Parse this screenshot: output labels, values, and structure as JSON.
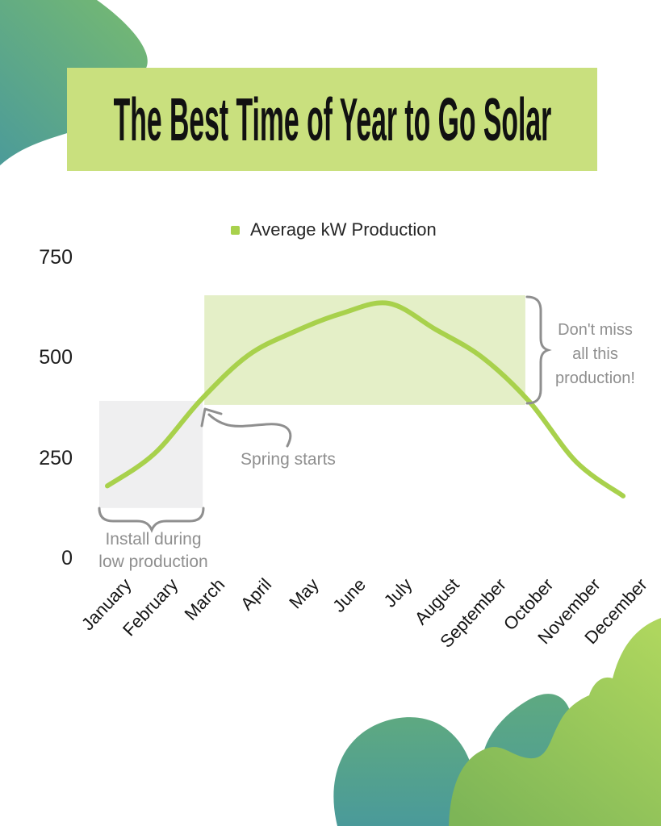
{
  "page": {
    "background": "#ffffff"
  },
  "title_banner": {
    "text": "The Best Time of Year to Go Solar",
    "bg_color": "#c9e07e",
    "text_color": "#111111"
  },
  "legend": {
    "label": "Average kW Production",
    "marker_color": "#a8d14c"
  },
  "chart_data": {
    "type": "line",
    "title": "Average kW Production",
    "categories": [
      "January",
      "February",
      "March",
      "April",
      "May",
      "June",
      "July",
      "August",
      "September",
      "October",
      "November",
      "December"
    ],
    "values": [
      180,
      260,
      395,
      505,
      565,
      610,
      635,
      570,
      500,
      390,
      240,
      155
    ],
    "unit": "kW",
    "xlabel": "",
    "ylabel": "",
    "yticks": [
      750,
      500,
      250,
      0
    ],
    "ylim": [
      0,
      750
    ],
    "grid": false,
    "legend_position": "top-center",
    "line_color": "#a8d14c",
    "highlight_regions": [
      {
        "name": "low-production",
        "from": "January",
        "to": "March",
        "kw_low": 125,
        "kw_high": 392,
        "color": "#efeff0",
        "label": "Install during low production"
      },
      {
        "name": "high-production",
        "from": "March",
        "to": "October",
        "kw_low": 382,
        "kw_high": 655,
        "color": "#e4efc7",
        "label": "Don't miss all this production!"
      }
    ]
  },
  "annotations": {
    "spring_starts": "Spring starts",
    "install": {
      "line1": "Install during",
      "line2": "low production"
    },
    "dont_miss": {
      "line1": "Don't miss",
      "line2": "all this",
      "line3": "production!"
    },
    "text_color": "#8f8f8f"
  },
  "decorations": {
    "top_left_blob": {
      "color_start": "#74b873",
      "color_end": "#4d9c98"
    },
    "bottom_right_teal_blobs": {
      "color_start": "#5ea981",
      "color_end": "#4a9a9a"
    },
    "bottom_right_green_blob": {
      "color_start": "#aed65e",
      "color_end": "#7db557"
    }
  }
}
